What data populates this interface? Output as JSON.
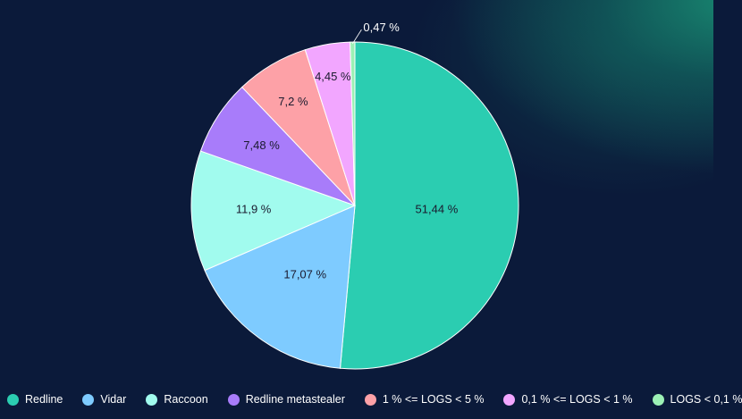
{
  "chart_data": {
    "type": "pie",
    "title": "",
    "series": [
      {
        "label": "Redline",
        "value": 51.44,
        "display": "51,44 %",
        "color": "#2bcdb1"
      },
      {
        "label": "Vidar",
        "value": 17.07,
        "display": "17,07 %",
        "color": "#7ecbff"
      },
      {
        "label": "Raccoon",
        "value": 11.9,
        "display": "11,9 %",
        "color": "#a1fbee"
      },
      {
        "label": "Redline metastealer",
        "value": 7.48,
        "display": "7,48 %",
        "color": "#a87cfa"
      },
      {
        "label": "1 % <= LOGS < 5 %",
        "value": 7.2,
        "display": "7,2 %",
        "color": "#fda1a7"
      },
      {
        "label": "0,1 % <= LOGS < 1 %",
        "value": 4.45,
        "display": "4,45 %",
        "color": "#f2a6ff"
      },
      {
        "label": "LOGS < 0,1 %",
        "value": 0.47,
        "display": "0,47 %",
        "color": "#9cf0b5"
      }
    ],
    "legend_position": "bottom",
    "start": "12 o'clock",
    "direction": "clockwise"
  },
  "colors": {
    "background": "#0b1a3a",
    "glow": "#1a9678",
    "label_dark": "#1a1a2e",
    "label_light": "#ffffff"
  }
}
